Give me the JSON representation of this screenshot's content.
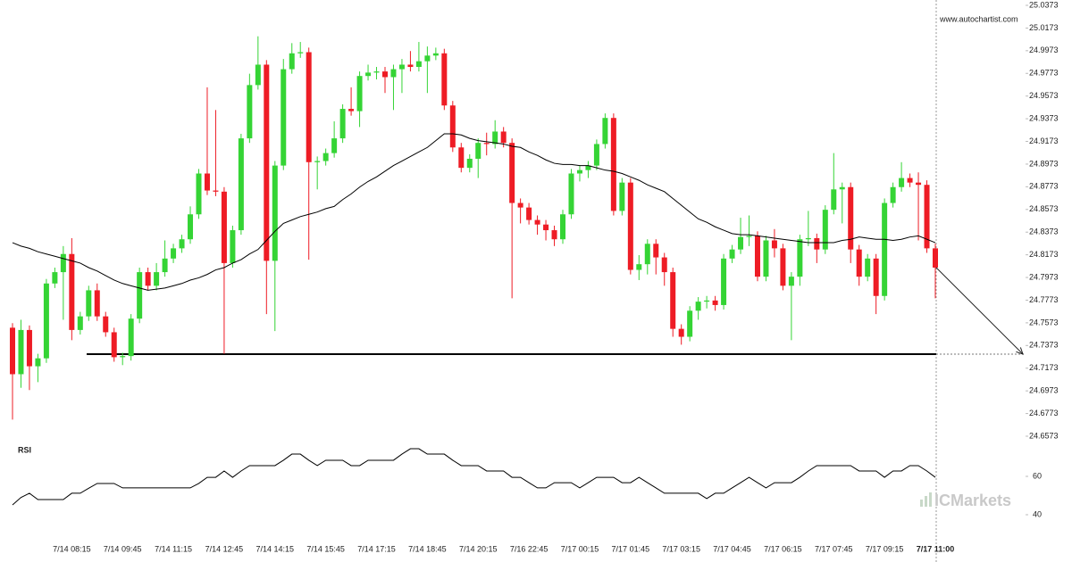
{
  "chart_data": {
    "type": "candlestick",
    "site": "www.autochartist.com",
    "brand": "ICMarkets",
    "up_color": "#35d435",
    "down_color": "#ee1c25",
    "categories": [
      null,
      null,
      null,
      null,
      null,
      null,
      null,
      "7/14 08:15",
      null,
      null,
      null,
      null,
      null,
      "7/14 09:45",
      null,
      null,
      null,
      null,
      null,
      "7/14 11:15",
      null,
      null,
      null,
      null,
      null,
      "7/14 12:45",
      null,
      null,
      null,
      null,
      null,
      "7/14 14:15",
      null,
      null,
      null,
      null,
      null,
      "7/14 15:45",
      null,
      null,
      null,
      null,
      null,
      "7/14 17:15",
      null,
      null,
      null,
      null,
      null,
      "7/14 18:45",
      null,
      null,
      null,
      null,
      null,
      "7/14 20:15",
      null,
      null,
      null,
      null,
      null,
      "7/16 22:45",
      null,
      null,
      null,
      null,
      null,
      "7/17 00:15",
      null,
      null,
      null,
      null,
      null,
      "7/17 01:45",
      null,
      null,
      null,
      null,
      null,
      "7/17 03:15",
      null,
      null,
      null,
      null,
      null,
      "7/17 04:45",
      null,
      null,
      null,
      null,
      null,
      "7/17 06:15",
      null,
      null,
      null,
      null,
      null,
      "7/17 07:45",
      null,
      null,
      null,
      null,
      null,
      "7/17 09:15",
      null,
      null,
      null,
      null,
      null,
      "7/17 11:00"
    ],
    "open": [
      24.753,
      24.712,
      24.751,
      24.719,
      24.726,
      24.792,
      24.802,
      24.818,
      24.751,
      24.763,
      24.786,
      24.763,
      24.749,
      24.727,
      24.728,
      24.761,
      24.802,
      24.79,
      24.802,
      24.814,
      24.823,
      24.831,
      24.853,
      24.889,
      24.874,
      24.873,
      24.81,
      24.839,
      24.92,
      24.967,
      24.985,
      24.812,
      24.896,
      24.981,
      24.995,
      24.996,
      24.899,
      24.9,
      24.907,
      24.92,
      24.946,
      24.944,
      24.975,
      24.978,
      24.979,
      24.974,
      24.981,
      24.985,
      24.983,
      24.988,
      24.993,
      24.995,
      24.949,
      24.912,
      24.894,
      24.902,
      24.916,
      24.915,
      24.926,
      24.916,
      24.863,
      24.859,
      24.848,
      24.844,
      24.839,
      24.831,
      24.853,
      24.889,
      24.892,
      24.896,
      24.915,
      24.938,
      24.856,
      24.881,
      24.804,
      24.809,
      24.827,
      24.815,
      24.802,
      24.752,
      24.745,
      24.768,
      24.776,
      24.777,
      24.773,
      24.814,
      24.822,
      24.833,
      24.834,
      24.798,
      24.83,
      24.823,
      24.79,
      24.798,
      24.831,
      24.832,
      24.822,
      24.857,
      24.875,
      24.877,
      24.822,
      24.798,
      24.814,
      24.781,
      24.863,
      24.877,
      24.885,
      24.881,
      24.879,
      24.823
    ],
    "high": [
      24.757,
      24.76,
      24.755,
      24.73,
      24.796,
      24.806,
      24.825,
      24.832,
      24.767,
      24.79,
      24.792,
      24.767,
      24.753,
      24.731,
      24.765,
      24.806,
      24.806,
      24.81,
      24.83,
      24.827,
      24.835,
      24.86,
      24.893,
      24.965,
      24.945,
      24.877,
      24.843,
      24.924,
      24.977,
      25.01,
      24.989,
      24.9,
      24.99,
      25.004,
      25.005,
      25.0,
      24.904,
      24.911,
      24.935,
      24.95,
      24.965,
      24.979,
      24.985,
      24.983,
      24.983,
      24.985,
      24.99,
      24.997,
      25.005,
      25.001,
      25.0,
      24.999,
      24.953,
      24.916,
      24.906,
      24.92,
      24.925,
      24.936,
      24.93,
      24.92,
      24.867,
      24.863,
      24.852,
      24.848,
      24.843,
      24.857,
      24.893,
      24.896,
      24.9,
      24.919,
      24.942,
      24.942,
      24.885,
      24.885,
      24.817,
      24.831,
      24.831,
      24.819,
      24.806,
      24.756,
      24.772,
      24.78,
      24.781,
      24.781,
      24.818,
      24.826,
      24.85,
      24.852,
      24.838,
      24.834,
      24.84,
      24.827,
      24.802,
      24.835,
      24.856,
      24.836,
      24.861,
      24.907,
      24.881,
      24.881,
      24.826,
      24.818,
      24.818,
      24.867,
      24.881,
      24.899,
      24.889,
      24.89,
      24.883,
      24.827
    ],
    "low": [
      24.672,
      24.7,
      24.698,
      24.705,
      24.722,
      24.788,
      24.76,
      24.742,
      24.747,
      24.759,
      24.759,
      24.745,
      24.723,
      24.72,
      24.724,
      24.757,
      24.786,
      24.786,
      24.798,
      24.81,
      24.819,
      24.827,
      24.849,
      24.87,
      24.869,
      24.73,
      24.806,
      24.835,
      24.916,
      24.963,
      24.765,
      24.75,
      24.892,
      24.977,
      24.991,
      24.813,
      24.875,
      24.896,
      24.903,
      24.916,
      24.94,
      24.93,
      24.971,
      24.972,
      24.96,
      24.945,
      24.96,
      24.979,
      24.979,
      24.96,
      24.989,
      24.945,
      24.908,
      24.89,
      24.89,
      24.885,
      24.905,
      24.911,
      24.912,
      24.779,
      24.845,
      24.844,
      24.835,
      24.83,
      24.825,
      24.827,
      24.849,
      24.882,
      24.885,
      24.892,
      24.911,
      24.852,
      24.852,
      24.8,
      24.795,
      24.8,
      24.8,
      24.79,
      24.745,
      24.738,
      24.741,
      24.76,
      24.77,
      24.768,
      24.769,
      24.81,
      24.818,
      24.825,
      24.794,
      24.794,
      24.815,
      24.786,
      24.742,
      24.79,
      24.825,
      24.81,
      24.818,
      24.853,
      24.845,
      24.81,
      24.79,
      24.794,
      24.765,
      24.777,
      24.859,
      24.873,
      24.877,
      24.83,
      24.819,
      24.779
    ],
    "close": [
      24.712,
      24.751,
      24.719,
      24.726,
      24.792,
      24.802,
      24.818,
      24.751,
      24.763,
      24.786,
      24.763,
      24.749,
      24.727,
      24.728,
      24.761,
      24.802,
      24.79,
      24.802,
      24.814,
      24.823,
      24.831,
      24.853,
      24.889,
      24.874,
      24.873,
      24.81,
      24.839,
      24.92,
      24.967,
      24.985,
      24.812,
      24.896,
      24.981,
      24.995,
      24.996,
      24.899,
      24.9,
      24.907,
      24.92,
      24.946,
      24.944,
      24.975,
      24.978,
      24.979,
      24.974,
      24.981,
      24.985,
      24.983,
      24.988,
      24.993,
      24.995,
      24.949,
      24.912,
      24.894,
      24.902,
      24.916,
      24.915,
      24.926,
      24.916,
      24.863,
      24.859,
      24.848,
      24.844,
      24.839,
      24.831,
      24.853,
      24.889,
      24.892,
      24.896,
      24.915,
      24.938,
      24.856,
      24.881,
      24.804,
      24.809,
      24.827,
      24.815,
      24.802,
      24.752,
      24.745,
      24.768,
      24.776,
      24.777,
      24.773,
      24.814,
      24.822,
      24.833,
      24.834,
      24.798,
      24.83,
      24.823,
      24.79,
      24.798,
      24.831,
      24.832,
      24.822,
      24.857,
      24.875,
      24.877,
      24.822,
      24.798,
      24.814,
      24.781,
      24.863,
      24.877,
      24.885,
      24.881,
      24.879,
      24.823,
      24.806
    ],
    "ma": {
      "color": "#000000",
      "values": [
        24.828,
        24.825,
        24.823,
        24.82,
        24.818,
        24.816,
        24.814,
        24.812,
        24.81,
        24.806,
        24.803,
        24.799,
        24.795,
        24.792,
        24.79,
        24.788,
        24.786,
        24.787,
        24.788,
        24.79,
        24.792,
        24.795,
        24.797,
        24.8,
        24.804,
        24.806,
        24.81,
        24.813,
        24.818,
        24.822,
        24.83,
        24.838,
        24.845,
        24.848,
        24.851,
        24.853,
        24.855,
        24.858,
        24.86,
        24.866,
        24.871,
        24.877,
        24.882,
        24.886,
        24.891,
        24.896,
        24.9,
        24.904,
        24.908,
        24.912,
        24.918,
        24.924,
        24.924,
        24.923,
        24.92,
        24.918,
        24.917,
        24.916,
        24.915,
        24.913,
        24.912,
        24.908,
        24.905,
        24.901,
        24.898,
        24.897,
        24.897,
        24.896,
        24.896,
        24.894,
        24.892,
        24.891,
        24.889,
        24.886,
        24.883,
        24.879,
        24.876,
        24.873,
        24.867,
        24.861,
        24.855,
        24.849,
        24.846,
        24.842,
        24.839,
        24.836,
        24.835,
        24.835,
        24.834,
        24.833,
        24.832,
        24.831,
        24.83,
        24.829,
        24.828,
        24.828,
        24.828,
        24.828,
        24.83,
        24.831,
        24.833,
        24.832,
        24.831,
        24.831,
        24.83,
        24.831,
        24.833,
        24.834,
        24.831,
        24.828
      ]
    },
    "level": 24.7297,
    "ylim": [
      24.6573,
      25.0373
    ],
    "yticks": [
      25.0373,
      25.0173,
      24.9973,
      24.9773,
      24.9573,
      24.9373,
      24.9173,
      24.8973,
      24.8773,
      24.8573,
      24.8373,
      24.8173,
      24.7973,
      24.7773,
      24.7573,
      24.7373,
      24.7173,
      24.6973,
      24.6773,
      24.6573
    ],
    "rsi": {
      "label": "RSI",
      "color": "#000000",
      "ylim": [
        30,
        80
      ],
      "yticks": [
        60,
        40
      ],
      "values": [
        45.1,
        49,
        51.2,
        47.9,
        47.9,
        47.9,
        47.9,
        51.2,
        51.2,
        53.8,
        56.3,
        56.3,
        56.3,
        54.0,
        54.0,
        54.0,
        54.0,
        54.0,
        54.0,
        54.0,
        54.0,
        54.0,
        56.3,
        59.5,
        59.5,
        62.8,
        59.5,
        62.8,
        65.6,
        65.6,
        65.6,
        65.6,
        68.4,
        71.6,
        71.6,
        68.4,
        65.6,
        68.4,
        68.4,
        68.4,
        65.6,
        65.6,
        68.4,
        68.4,
        68.4,
        68.4,
        71.6,
        74.4,
        74.4,
        71.6,
        71.6,
        71.6,
        68.4,
        65.6,
        65.6,
        65.6,
        62.8,
        62.8,
        62.8,
        59.5,
        59.5,
        56.7,
        54.0,
        54.0,
        56.7,
        56.7,
        56.7,
        54.0,
        56.7,
        59.5,
        59.5,
        59.5,
        56.7,
        56.7,
        59.5,
        56.7,
        54.0,
        51.2,
        51.2,
        51.2,
        51.2,
        51.2,
        48.4,
        51.2,
        51.2,
        54.0,
        56.7,
        59.5,
        56.7,
        54.0,
        56.7,
        56.7,
        56.7,
        59.5,
        62.8,
        65.6,
        65.6,
        65.6,
        65.6,
        65.6,
        62.8,
        62.8,
        62.8,
        59.5,
        62.8,
        62.8,
        65.6,
        65.6,
        62.8,
        59.5
      ]
    }
  }
}
